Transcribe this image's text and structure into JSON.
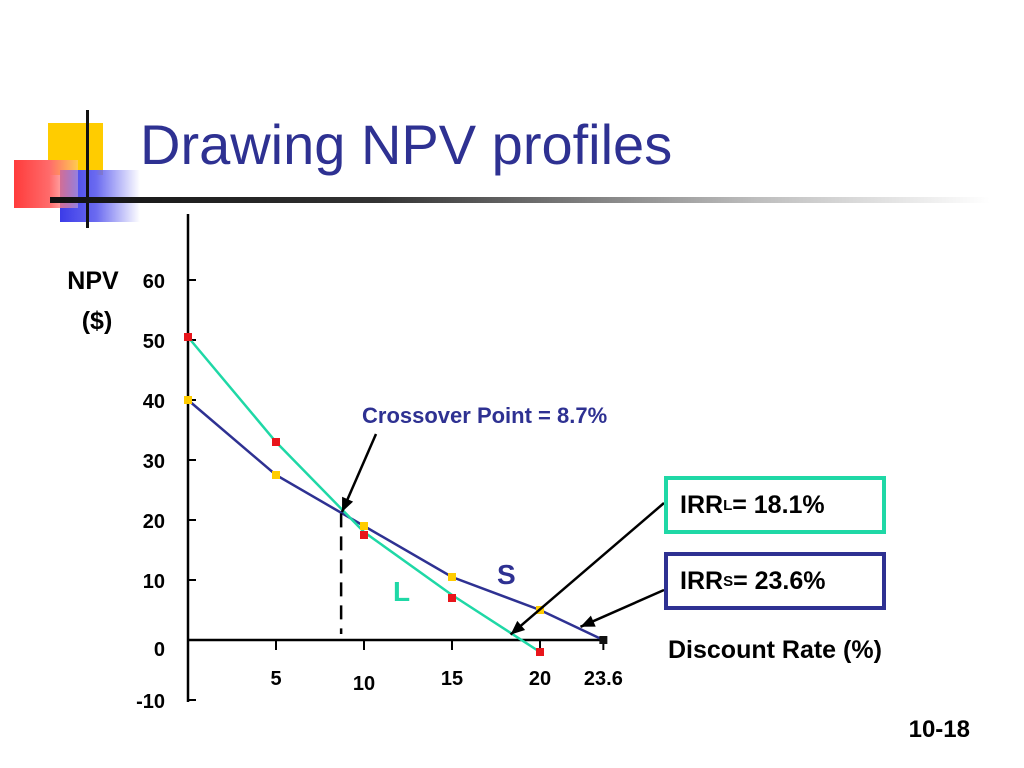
{
  "slide": {
    "title": "Drawing NPV profiles",
    "page_number": "10-18"
  },
  "colors": {
    "title": "#2E3192",
    "series_S": "#2E3192",
    "series_L": "#1FD8A6",
    "marker_yellow": "#FFCC00",
    "marker_red": "#E8151B",
    "deco_yellow": "#FFCC00",
    "deco_red": "#FF3B3B",
    "deco_blue": "#3B3BE8"
  },
  "chart_data": {
    "type": "line",
    "ylabel_line1": "NPV",
    "ylabel_line2": "($)",
    "xlabel": "Discount Rate (%)",
    "ylim": [
      -10,
      60
    ],
    "xlim": [
      0,
      23.6
    ],
    "y_ticks": [
      "60",
      "50",
      "40",
      "30",
      "20",
      "10",
      "0",
      "-10"
    ],
    "y_tick_values": [
      60,
      50,
      40,
      30,
      20,
      10,
      0,
      -10
    ],
    "x_ticks": [
      "5",
      "10",
      "15",
      "20",
      "23.6"
    ],
    "x_tick_values": [
      5,
      10,
      15,
      20,
      23.6
    ],
    "grid": false,
    "series": [
      {
        "name": "S",
        "x": [
          0,
          5,
          10,
          15,
          20,
          23.6
        ],
        "values": [
          40,
          27.5,
          19,
          10.5,
          5,
          0
        ]
      },
      {
        "name": "L",
        "x": [
          0,
          5,
          10,
          15,
          20
        ],
        "values": [
          50.5,
          33,
          18,
          7.5,
          -2
        ]
      }
    ],
    "crossover": {
      "x": 8.7,
      "y": 21.1,
      "label": "Crossover Point  =  8.7%"
    },
    "annotations": {
      "irr_l": {
        "prefix": "IRR",
        "subscript": "L",
        "suffix": " = 18.1%",
        "rate": 18.1
      },
      "irr_s": {
        "prefix": "IRR",
        "subscript": "S",
        "suffix": " = 23.6%",
        "rate": 23.6
      }
    }
  }
}
